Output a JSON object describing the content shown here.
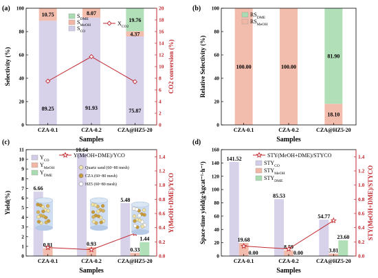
{
  "colors": {
    "co": "#d3cce8",
    "meoh": "#f2b6a5",
    "dme": "#a9dcb0",
    "accent": "#c1272d"
  },
  "chart_data": [
    {
      "type": "bar",
      "panel": "(a)",
      "stacked": true,
      "categories": [
        "CZA-0.1",
        "CZA-0.2",
        "CZA@HZ5-20"
      ],
      "xlabel": "Samples",
      "ylabel": "Selectivity (%)",
      "ylim": [
        0,
        100
      ],
      "yticks": [
        0,
        20,
        40,
        60,
        80,
        100
      ],
      "y2label": "CO2 conversion (%)",
      "y2lim": [
        0,
        20
      ],
      "y2ticks": [
        0,
        2,
        4,
        6,
        8,
        10,
        12,
        14,
        16,
        18,
        20
      ],
      "series": [
        {
          "name": "SCO",
          "values": [
            89.25,
            91.93,
            75.87
          ]
        },
        {
          "name": "SMeOH",
          "values": [
            10.75,
            8.07,
            4.37
          ]
        },
        {
          "name": "SDME",
          "values": [
            0,
            0,
            19.76
          ]
        }
      ],
      "line": {
        "name": "XCO2",
        "values": [
          7.5,
          11.7,
          7.4
        ]
      },
      "legend": [
        "SDME",
        "SMeOH",
        "SCO"
      ],
      "line_legend": "XCO2",
      "labels": {
        "SCO": [
          "89.25",
          "91.93",
          "75.87"
        ],
        "SMeOH": [
          "10.75",
          "8.07",
          "4.37"
        ],
        "SDME": [
          "",
          "",
          "19.76"
        ]
      }
    },
    {
      "type": "bar",
      "panel": "(b)",
      "stacked": true,
      "categories": [
        "CZA-0.1",
        "CZA-0.2",
        "CZA@HZ5-20"
      ],
      "xlabel": "Samples",
      "ylabel": "Relative Selectivity (%)",
      "ylim": [
        0,
        100
      ],
      "yticks": [
        0,
        20,
        40,
        60,
        80,
        100
      ],
      "series": [
        {
          "name": "RSMeOH",
          "values": [
            100,
            100,
            18.1
          ]
        },
        {
          "name": "RSDME",
          "values": [
            0,
            0,
            81.9
          ]
        }
      ],
      "legend": [
        "RSDME",
        "RSMeOH"
      ],
      "labels": {
        "RSMeOH": [
          "100.00",
          "100.00",
          "18.10"
        ],
        "RSDME": [
          "",
          "",
          "81.90"
        ]
      }
    },
    {
      "type": "bar",
      "panel": "(c)",
      "stacked": false,
      "categories": [
        "CZA-0.1",
        "CZA-0.2",
        "CZA@HZ5-20"
      ],
      "xlabel": "Samples",
      "ylabel": "Yield(%)",
      "ylim": [
        0,
        11
      ],
      "yticks": [
        0,
        1,
        2,
        3,
        4,
        5,
        6,
        7,
        8,
        9,
        10,
        11
      ],
      "y2label": "Y(MeOH+DME)/YCO",
      "y2lim": [
        0,
        1.5
      ],
      "y2ticks": [
        0.0,
        0.2,
        0.4,
        0.6,
        0.8,
        1.0,
        1.2,
        1.4
      ],
      "series": [
        {
          "name": "YCO",
          "values": [
            6.66,
            10.64,
            5.48
          ]
        },
        {
          "name": "YMeOH",
          "values": [
            0.81,
            0.93,
            0.33
          ]
        },
        {
          "name": "YDME",
          "values": [
            0,
            0,
            1.44
          ]
        }
      ],
      "line": {
        "name": "Y(MeOH+DME)/YCO",
        "values": [
          0.12,
          0.09,
          0.32
        ]
      },
      "legend": [
        "YCO",
        "YMeOH",
        "YDME"
      ],
      "line_legend": "Y(MeOH+DME)/YCO",
      "labels": {
        "YCO": [
          "6.66",
          "10.64",
          "5.48"
        ],
        "YMeOH": [
          "0.81",
          "0.93",
          "0.33"
        ],
        "YDME": [
          "",
          "",
          "1.44"
        ]
      },
      "inset_legend": [
        "Quartz sand (60~80 mesh)",
        "CZA (60~80 mesh)",
        "HZ5 (60~80 mesh)"
      ]
    },
    {
      "type": "bar",
      "panel": "(d)",
      "stacked": false,
      "categories": [
        "CZA-0.1",
        "CZA-0.2",
        "CZA@HZ5-20"
      ],
      "xlabel": "Samples",
      "ylabel": "Space-time yield(g·kgcat⁻¹·h⁻¹)",
      "ylim": [
        0,
        160
      ],
      "yticks": [
        0,
        20,
        40,
        60,
        80,
        100,
        120,
        140,
        160
      ],
      "y2label": "STY(MeOH+DME)/STYCO",
      "y2lim": [
        0,
        1.5
      ],
      "y2ticks": [
        0.0,
        0.2,
        0.4,
        0.6,
        0.8,
        1.0,
        1.2,
        1.4
      ],
      "series": [
        {
          "name": "STYCO",
          "values": [
            141.52,
            85.53,
            54.77
          ]
        },
        {
          "name": "STYMeOH",
          "values": [
            19.68,
            8.59,
            3.81
          ]
        },
        {
          "name": "STYDME",
          "values": [
            0,
            0,
            23.6
          ]
        }
      ],
      "line": {
        "name": "STY(MeOH+DME)/STYCO",
        "values": [
          0.14,
          0.1,
          0.5
        ]
      },
      "legend": [
        "STYCO",
        "STYMeOH",
        "STYDME"
      ],
      "line_legend": "STY(MeOH+DME)/STYCO",
      "labels": {
        "STYCO": [
          "141.52",
          "85.53",
          "54.77"
        ],
        "STYMeOH": [
          "19.68",
          "8.59",
          "3.81"
        ],
        "STYDME": [
          "0.00",
          "0.00",
          "23.60"
        ]
      }
    }
  ]
}
